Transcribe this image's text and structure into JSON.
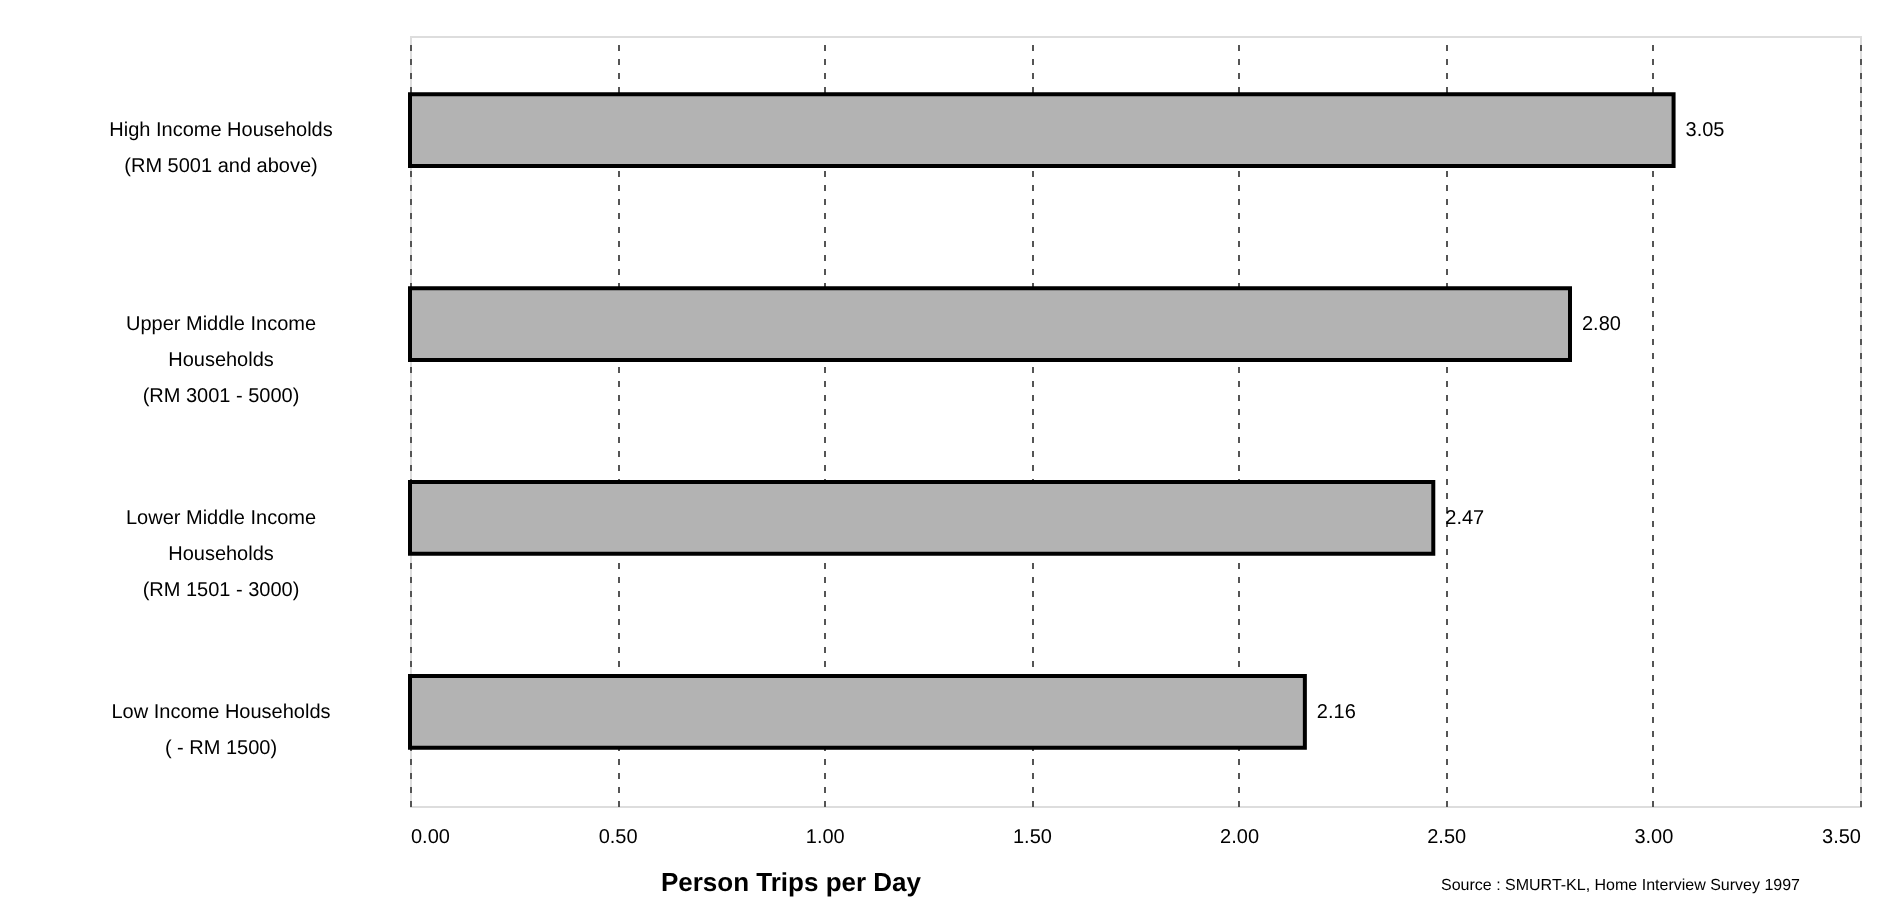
{
  "chart_data": {
    "type": "bar",
    "orientation": "horizontal",
    "categories": [
      "High Income Households\n\n(RM 5001 and above)",
      "Upper Middle Income\nHouseholds\n(RM 3001 - 5000)",
      "Lower Middle Income\nHouseholds\n(RM 1501 - 3000)",
      "Low Income Households\n\n( - RM 1500)"
    ],
    "values": [
      3.05,
      2.8,
      2.47,
      2.16
    ],
    "color": "#b3b3b3",
    "value_labels": [
      "3.05",
      "2.80",
      "2.47",
      "2.16"
    ],
    "xlim": [
      0,
      3.5
    ],
    "xticks": [
      {
        "value": 0,
        "label": "0.00"
      },
      {
        "value": 0.5,
        "label": "0.50"
      },
      {
        "value": 1,
        "label": "1.00"
      },
      {
        "value": 1.5,
        "label": "1.50"
      },
      {
        "value": 2,
        "label": "2.00"
      },
      {
        "value": 2.5,
        "label": "2.50"
      },
      {
        "value": 3,
        "label": "3.00"
      },
      {
        "value": 3.5,
        "label": "3.50"
      }
    ],
    "xlabel": "Person Trips per Day",
    "grid": "x",
    "annotations": [
      "Source : SMURT-KL, Home Interview Survey 1997"
    ]
  }
}
